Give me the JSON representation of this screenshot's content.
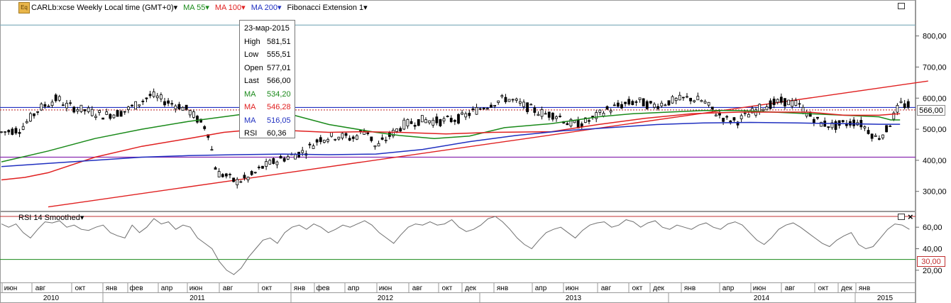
{
  "header": {
    "symbol": "CARLb:xcse Weekly Local time (GMT+0)",
    "ma55": "MA 55",
    "ma100": "MA 100",
    "ma200": "MA 200",
    "fib": "Fibonacci Extension 1",
    "dropdown_glyph": "▾"
  },
  "icons": [
    "eq-icon",
    "maximize-icon",
    "close-icon",
    "dropdown-icon"
  ],
  "tooltip": {
    "date": "23-мар-2015",
    "rows": [
      {
        "k": "High",
        "v": "581,51",
        "color": "#000000"
      },
      {
        "k": "Low",
        "v": "555,51",
        "color": "#000000"
      },
      {
        "k": "Open",
        "v": "577,01",
        "color": "#000000"
      },
      {
        "k": "Last",
        "v": "566,00",
        "color": "#000000"
      },
      {
        "k": "MA",
        "v": "534,20",
        "color": "#1a8a1a"
      },
      {
        "k": "MA",
        "v": "546,28",
        "color": "#e02020"
      },
      {
        "k": "MA",
        "v": "516,05",
        "color": "#2030c0"
      },
      {
        "k": "RSI",
        "v": "60,36",
        "color": "#000000"
      }
    ]
  },
  "rsi": {
    "label": "RSI 14 Smoothed",
    "value_box": "30,00",
    "ticks": [
      "60,00",
      "40,00",
      "20,00"
    ]
  },
  "price_box": "566,00",
  "time_axis": {
    "months": [
      "июн",
      "авг",
      "окт",
      "янв",
      "фев",
      "апр",
      "июн",
      "авг",
      "окт",
      "янв",
      "фев",
      "апр",
      "июн",
      "авг",
      "окт",
      "дек",
      "янв",
      "апр",
      "июн",
      "авг",
      "окт",
      "дек",
      "янв",
      "апр",
      "июн",
      "авг",
      "окт",
      "дек",
      "янв"
    ],
    "years": [
      "2010",
      "2011",
      "2012",
      "2013",
      "2014",
      "2015"
    ]
  },
  "colors": {
    "ma55": "#1a8a1a",
    "ma100": "#e02020",
    "ma200": "#2030c0",
    "fib_level": "#7a7a7a",
    "support": "#8a2bb0",
    "resistance": "#2030c0",
    "rsi_line": "#707070",
    "rsi_upper": "#c03030",
    "rsi_lower": "#1a8a1a"
  },
  "chart_data": {
    "type": "candlestick",
    "title": "CARLb:xcse Weekly",
    "y_axis": {
      "min": 240,
      "max": 870,
      "ticks": [
        300,
        400,
        500,
        600,
        700,
        800
      ],
      "tick_labels": [
        "300,00",
        "400,00",
        "500,00",
        "600,00",
        "700,00",
        "800,00"
      ]
    },
    "horizontal_lines": [
      {
        "name": "upper-level",
        "value": 835,
        "color": "#7aa9b8"
      },
      {
        "name": "resistance-line",
        "value": 570,
        "color": "#2030c0"
      },
      {
        "name": "resistance-dotted",
        "value": 562,
        "color": "#c03030"
      },
      {
        "name": "support-line",
        "value": 410,
        "color": "#8a2bb0"
      }
    ],
    "trendline": {
      "from": {
        "week": 20,
        "price": 250
      },
      "to": {
        "week": 264,
        "price": 520
      }
    },
    "ma55": [
      [
        0,
        395
      ],
      [
        20,
        430
      ],
      [
        40,
        470
      ],
      [
        60,
        500
      ],
      [
        80,
        525
      ],
      [
        100,
        545
      ],
      [
        110,
        555
      ],
      [
        125,
        545
      ],
      [
        140,
        515
      ],
      [
        160,
        490
      ],
      [
        170,
        480
      ],
      [
        185,
        470
      ],
      [
        200,
        478
      ],
      [
        215,
        505
      ],
      [
        235,
        518
      ],
      [
        255,
        540
      ],
      [
        270,
        550
      ],
      [
        285,
        555
      ],
      [
        300,
        560
      ],
      [
        315,
        560
      ],
      [
        330,
        555
      ],
      [
        345,
        550
      ],
      [
        360,
        545
      ],
      [
        375,
        540
      ],
      [
        380,
        530
      ],
      [
        384,
        530
      ]
    ],
    "ma100": [
      [
        0,
        337
      ],
      [
        10,
        345
      ],
      [
        20,
        360
      ],
      [
        40,
        410
      ],
      [
        60,
        445
      ],
      [
        80,
        470
      ],
      [
        95,
        490
      ],
      [
        110,
        500
      ],
      [
        125,
        495
      ],
      [
        140,
        490
      ],
      [
        155,
        492
      ],
      [
        170,
        490
      ],
      [
        190,
        485
      ],
      [
        210,
        490
      ],
      [
        235,
        492
      ],
      [
        255,
        515
      ],
      [
        275,
        535
      ],
      [
        295,
        550
      ],
      [
        315,
        555
      ],
      [
        330,
        555
      ],
      [
        345,
        555
      ],
      [
        360,
        545
      ],
      [
        375,
        545
      ],
      [
        380,
        548
      ],
      [
        384,
        550
      ]
    ],
    "ma200": [
      [
        0,
        380
      ],
      [
        20,
        390
      ],
      [
        40,
        400
      ],
      [
        60,
        410
      ],
      [
        80,
        415
      ],
      [
        100,
        418
      ],
      [
        120,
        420
      ],
      [
        140,
        418
      ],
      [
        160,
        420
      ],
      [
        180,
        435
      ],
      [
        200,
        460
      ],
      [
        220,
        480
      ],
      [
        240,
        495
      ],
      [
        260,
        505
      ],
      [
        280,
        515
      ],
      [
        300,
        520
      ],
      [
        320,
        522
      ],
      [
        340,
        520
      ],
      [
        360,
        518
      ],
      [
        375,
        516
      ],
      [
        384,
        516
      ]
    ],
    "price_path": [
      [
        0,
        490
      ],
      [
        8,
        500
      ],
      [
        16,
        565
      ],
      [
        24,
        600
      ],
      [
        28,
        575
      ],
      [
        36,
        560
      ],
      [
        44,
        545
      ],
      [
        52,
        555
      ],
      [
        58,
        580
      ],
      [
        64,
        610
      ],
      [
        70,
        590
      ],
      [
        76,
        575
      ],
      [
        80,
        560
      ],
      [
        88,
        500
      ],
      [
        92,
        360
      ],
      [
        96,
        350
      ],
      [
        100,
        330
      ],
      [
        106,
        345
      ],
      [
        112,
        380
      ],
      [
        118,
        400
      ],
      [
        124,
        415
      ],
      [
        130,
        430
      ],
      [
        136,
        470
      ],
      [
        144,
        480
      ],
      [
        150,
        470
      ],
      [
        156,
        500
      ],
      [
        160,
        440
      ],
      [
        166,
        480
      ],
      [
        172,
        515
      ],
      [
        180,
        530
      ],
      [
        188,
        525
      ],
      [
        196,
        535
      ],
      [
        204,
        565
      ],
      [
        210,
        585
      ],
      [
        216,
        600
      ],
      [
        222,
        580
      ],
      [
        228,
        560
      ],
      [
        232,
        550
      ],
      [
        238,
        545
      ],
      [
        242,
        520
      ],
      [
        246,
        515
      ],
      [
        252,
        530
      ],
      [
        258,
        560
      ],
      [
        266,
        580
      ],
      [
        272,
        590
      ],
      [
        278,
        575
      ],
      [
        286,
        590
      ],
      [
        294,
        600
      ],
      [
        300,
        590
      ],
      [
        304,
        560
      ],
      [
        310,
        530
      ],
      [
        314,
        525
      ],
      [
        320,
        550
      ],
      [
        326,
        575
      ],
      [
        334,
        590
      ],
      [
        340,
        580
      ],
      [
        346,
        540
      ],
      [
        350,
        520
      ],
      [
        356,
        510
      ],
      [
        362,
        520
      ],
      [
        366,
        525
      ],
      [
        370,
        500
      ],
      [
        374,
        470
      ],
      [
        378,
        495
      ],
      [
        384,
        580
      ],
      [
        388,
        575
      ]
    ],
    "rsi": {
      "min": 10,
      "max": 72,
      "levels": [
        30,
        70
      ],
      "values": [
        63,
        60,
        63,
        55,
        50,
        58,
        65,
        64,
        66,
        60,
        62,
        58,
        57,
        60,
        62,
        55,
        52,
        50,
        62,
        55,
        60,
        68,
        63,
        65,
        58,
        62,
        60,
        50,
        45,
        40,
        28,
        20,
        16,
        22,
        32,
        40,
        48,
        50,
        45,
        55,
        60,
        62,
        58,
        63,
        60,
        55,
        58,
        62,
        60,
        63,
        66,
        62,
        55,
        50,
        45,
        53,
        60,
        63,
        62,
        65,
        62,
        63,
        67,
        60,
        56,
        58,
        62,
        68,
        70,
        65,
        58,
        50,
        44,
        40,
        48,
        55,
        58,
        60,
        55,
        50,
        57,
        62,
        64,
        65,
        60,
        62,
        67,
        65,
        60,
        64,
        66,
        60,
        58,
        62,
        60,
        58,
        62,
        64,
        60,
        58,
        63,
        65,
        62,
        55,
        48,
        44,
        50,
        58,
        62,
        64,
        60,
        55,
        50,
        45,
        42,
        48,
        52,
        55,
        44,
        40,
        42,
        50,
        58,
        63,
        62,
        58
      ]
    }
  }
}
